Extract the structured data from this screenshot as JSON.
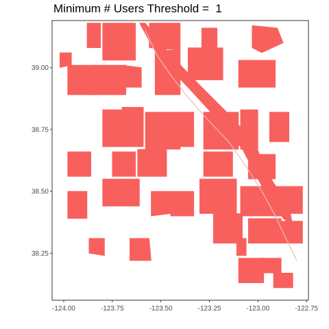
{
  "title": "Minimum # Users Threshold =  1",
  "colors": {
    "fill": "#f8605e",
    "panel_border": "#333333",
    "tick_text": "#4d4d4d",
    "river": "#f5b8b6"
  },
  "chart_data": {
    "type": "map",
    "title": "Minimum # Users Threshold =  1",
    "xlim": [
      -124.06,
      -122.74
    ],
    "ylim": [
      38.06,
      39.19
    ],
    "grid": false,
    "legend": "none",
    "x_ticks": [
      {
        "value": -124.0,
        "label": "-124.00"
      },
      {
        "value": -123.75,
        "label": "-123.75"
      },
      {
        "value": -123.5,
        "label": "-123.50"
      },
      {
        "value": -123.25,
        "label": "-123.25"
      },
      {
        "value": -123.0,
        "label": "-123.00"
      },
      {
        "value": -122.75,
        "label": "-122.75"
      }
    ],
    "y_ticks": [
      {
        "value": 39.0,
        "label": "39.00"
      },
      {
        "value": 38.75,
        "label": "38.75"
      },
      {
        "value": 38.5,
        "label": "38.50"
      },
      {
        "value": 38.25,
        "label": "38.25"
      }
    ],
    "regions": [
      [
        [
          -123.88,
          39.18
        ],
        [
          -123.81,
          39.18
        ],
        [
          -123.81,
          39.08
        ],
        [
          -123.88,
          39.08
        ]
      ],
      [
        [
          -123.8,
          39.18
        ],
        [
          -123.63,
          39.18
        ],
        [
          -123.63,
          39.03
        ],
        [
          -123.8,
          39.03
        ]
      ],
      [
        [
          -123.56,
          39.18
        ],
        [
          -123.4,
          39.18
        ],
        [
          -123.4,
          39.07
        ],
        [
          -123.56,
          39.08
        ]
      ],
      [
        [
          -123.29,
          39.16
        ],
        [
          -123.21,
          39.16
        ],
        [
          -123.21,
          39.08
        ],
        [
          -123.29,
          39.08
        ]
      ],
      [
        [
          -123.03,
          39.17
        ],
        [
          -122.9,
          39.16
        ],
        [
          -122.87,
          39.1
        ],
        [
          -122.98,
          39.06
        ],
        [
          -123.03,
          39.08
        ]
      ],
      [
        [
          -124.02,
          39.06
        ],
        [
          -123.96,
          39.06
        ],
        [
          -123.96,
          39.01
        ],
        [
          -124.02,
          39.0
        ]
      ],
      [
        [
          -123.98,
          39.01
        ],
        [
          -123.83,
          39.01
        ],
        [
          -123.83,
          38.89
        ],
        [
          -123.98,
          38.89
        ]
      ],
      [
        [
          -123.86,
          39.01
        ],
        [
          -123.68,
          39.01
        ],
        [
          -123.68,
          38.89
        ],
        [
          -123.86,
          38.89
        ]
      ],
      [
        [
          -123.7,
          39.01
        ],
        [
          -123.6,
          39.0
        ],
        [
          -123.6,
          38.92
        ],
        [
          -123.7,
          38.92
        ]
      ],
      [
        [
          -123.53,
          39.07
        ],
        [
          -123.4,
          39.07
        ],
        [
          -123.4,
          38.89
        ],
        [
          -123.53,
          38.89
        ]
      ],
      [
        [
          -123.36,
          39.08
        ],
        [
          -123.18,
          39.08
        ],
        [
          -123.18,
          38.95
        ],
        [
          -123.36,
          38.95
        ]
      ],
      [
        [
          -123.1,
          39.03
        ],
        [
          -122.91,
          39.03
        ],
        [
          -122.91,
          38.92
        ],
        [
          -123.1,
          38.92
        ]
      ],
      [
        [
          -123.8,
          38.83
        ],
        [
          -123.7,
          38.83
        ],
        [
          -123.7,
          38.68
        ],
        [
          -123.8,
          38.68
        ]
      ],
      [
        [
          -123.7,
          38.84
        ],
        [
          -123.59,
          38.84
        ],
        [
          -123.59,
          38.68
        ],
        [
          -123.7,
          38.68
        ]
      ],
      [
        [
          -123.58,
          38.82
        ],
        [
          -123.4,
          38.82
        ],
        [
          -123.4,
          38.67
        ],
        [
          -123.58,
          38.67
        ]
      ],
      [
        [
          -123.4,
          38.82
        ],
        [
          -123.33,
          38.82
        ],
        [
          -123.33,
          38.68
        ],
        [
          -123.4,
          38.68
        ]
      ],
      [
        [
          -123.28,
          38.82
        ],
        [
          -123.1,
          38.82
        ],
        [
          -123.1,
          38.67
        ],
        [
          -123.28,
          38.67
        ]
      ],
      [
        [
          -123.09,
          38.83
        ],
        [
          -123.0,
          38.83
        ],
        [
          -123.0,
          38.67
        ],
        [
          -123.09,
          38.67
        ]
      ],
      [
        [
          -122.94,
          38.82
        ],
        [
          -122.84,
          38.82
        ],
        [
          -122.84,
          38.7
        ],
        [
          -122.94,
          38.7
        ]
      ],
      [
        [
          -123.98,
          38.66
        ],
        [
          -123.86,
          38.66
        ],
        [
          -123.86,
          38.56
        ],
        [
          -123.98,
          38.56
        ]
      ],
      [
        [
          -123.75,
          38.66
        ],
        [
          -123.63,
          38.66
        ],
        [
          -123.63,
          38.56
        ],
        [
          -123.75,
          38.56
        ]
      ],
      [
        [
          -123.62,
          38.67
        ],
        [
          -123.47,
          38.67
        ],
        [
          -123.47,
          38.56
        ],
        [
          -123.62,
          38.56
        ]
      ],
      [
        [
          -123.28,
          38.66
        ],
        [
          -123.13,
          38.66
        ],
        [
          -123.13,
          38.56
        ],
        [
          -123.28,
          38.56
        ]
      ],
      [
        [
          -123.05,
          38.65
        ],
        [
          -122.91,
          38.65
        ],
        [
          -122.91,
          38.55
        ],
        [
          -123.05,
          38.55
        ]
      ],
      [
        [
          -123.8,
          38.55
        ],
        [
          -123.61,
          38.55
        ],
        [
          -123.61,
          38.44
        ],
        [
          -123.8,
          38.44
        ]
      ],
      [
        [
          -123.98,
          38.5
        ],
        [
          -123.88,
          38.5
        ],
        [
          -123.88,
          38.39
        ],
        [
          -123.98,
          38.39
        ]
      ],
      [
        [
          -123.55,
          38.5
        ],
        [
          -123.45,
          38.5
        ],
        [
          -123.45,
          38.41
        ],
        [
          -123.55,
          38.4
        ]
      ],
      [
        [
          -123.45,
          38.5
        ],
        [
          -123.33,
          38.5
        ],
        [
          -123.33,
          38.4
        ],
        [
          -123.45,
          38.4
        ]
      ],
      [
        [
          -123.3,
          38.55
        ],
        [
          -123.11,
          38.55
        ],
        [
          -123.11,
          38.41
        ],
        [
          -123.3,
          38.41
        ]
      ],
      [
        [
          -123.09,
          38.52
        ],
        [
          -122.88,
          38.52
        ],
        [
          -122.88,
          38.4
        ],
        [
          -123.09,
          38.4
        ]
      ],
      [
        [
          -122.88,
          38.52
        ],
        [
          -122.77,
          38.52
        ],
        [
          -122.77,
          38.41
        ],
        [
          -122.88,
          38.41
        ]
      ],
      [
        [
          -123.23,
          38.41
        ],
        [
          -123.08,
          38.41
        ],
        [
          -123.08,
          38.29
        ],
        [
          -123.23,
          38.29
        ]
      ],
      [
        [
          -123.05,
          38.39
        ],
        [
          -122.88,
          38.39
        ],
        [
          -122.88,
          38.29
        ],
        [
          -123.05,
          38.29
        ]
      ],
      [
        [
          -122.88,
          38.38
        ],
        [
          -122.77,
          38.38
        ],
        [
          -122.77,
          38.29
        ],
        [
          -122.88,
          38.29
        ]
      ],
      [
        [
          -123.66,
          38.31
        ],
        [
          -123.56,
          38.31
        ],
        [
          -123.55,
          38.22
        ],
        [
          -123.66,
          38.22
        ]
      ],
      [
        [
          -123.11,
          38.31
        ],
        [
          -123.06,
          38.31
        ],
        [
          -123.06,
          38.24
        ],
        [
          -123.11,
          38.24
        ]
      ],
      [
        [
          -123.1,
          38.23
        ],
        [
          -122.97,
          38.23
        ],
        [
          -122.97,
          38.13
        ],
        [
          -123.1,
          38.13
        ]
      ],
      [
        [
          -122.99,
          38.23
        ],
        [
          -122.88,
          38.23
        ],
        [
          -122.88,
          38.17
        ],
        [
          -122.99,
          38.17
        ]
      ],
      [
        [
          -122.92,
          38.17
        ],
        [
          -122.82,
          38.17
        ],
        [
          -122.82,
          38.11
        ],
        [
          -122.92,
          38.11
        ]
      ],
      [
        [
          -123.58,
          39.18
        ],
        [
          -123.46,
          39.06
        ],
        [
          -123.3,
          38.93
        ],
        [
          -123.16,
          38.82
        ],
        [
          -123.02,
          38.7
        ],
        [
          -122.94,
          38.56
        ],
        [
          -122.84,
          38.44
        ],
        [
          -122.82,
          38.36
        ],
        [
          -122.87,
          38.39
        ],
        [
          -122.98,
          38.52
        ],
        [
          -123.08,
          38.67
        ],
        [
          -123.22,
          38.8
        ],
        [
          -123.36,
          38.92
        ],
        [
          -123.52,
          39.05
        ],
        [
          -123.61,
          39.18
        ]
      ],
      [
        [
          -123.87,
          38.25
        ],
        [
          -123.79,
          38.24
        ],
        [
          -123.79,
          38.31
        ],
        [
          -123.87,
          38.31
        ]
      ]
    ],
    "river": [
      [
        -123.58,
        39.15
      ],
      [
        -123.52,
        39.05
      ],
      [
        -123.45,
        38.97
      ],
      [
        -123.36,
        38.88
      ],
      [
        -123.26,
        38.79
      ],
      [
        -123.15,
        38.7
      ],
      [
        -123.06,
        38.6
      ],
      [
        -122.98,
        38.5
      ],
      [
        -122.91,
        38.4
      ],
      [
        -122.85,
        38.3
      ],
      [
        -122.8,
        38.22
      ]
    ]
  }
}
